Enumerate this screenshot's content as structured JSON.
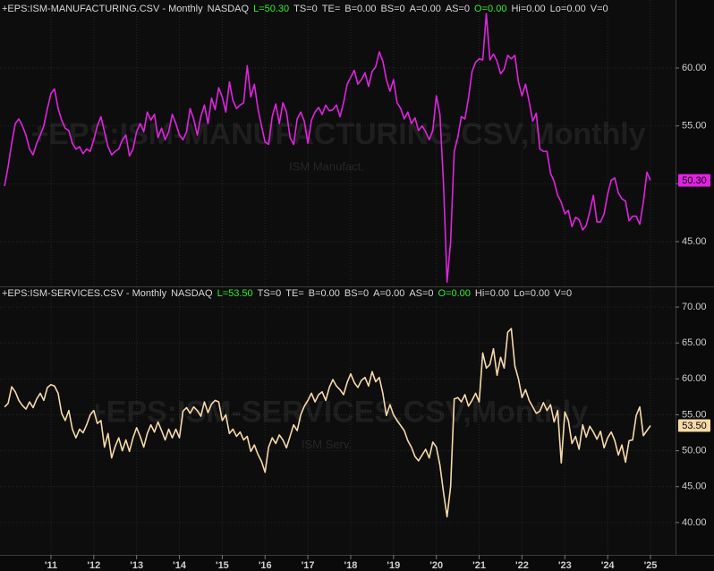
{
  "chart_data": [
    {
      "type": "line",
      "header": [
        {
          "text": "+EPS:ISM-MANUFACTURING.CSV - Monthly",
          "color": "#d8d8d8"
        },
        {
          "text": "NASDAQ",
          "color": "#d8d8d8"
        },
        {
          "text": "L=50.30",
          "color": "#33ee33"
        },
        {
          "text": "TS=0",
          "color": "#d8d8d8"
        },
        {
          "text": "TE=",
          "color": "#d8d8d8"
        },
        {
          "text": "B=0.00",
          "color": "#d8d8d8"
        },
        {
          "text": "BS=0",
          "color": "#d8d8d8"
        },
        {
          "text": "A=0.00",
          "color": "#d8d8d8"
        },
        {
          "text": "AS=0",
          "color": "#d8d8d8"
        },
        {
          "text": "O=0.00",
          "color": "#33ee33"
        },
        {
          "text": "Hi=0.00",
          "color": "#d8d8d8"
        },
        {
          "text": "Lo=0.00",
          "color": "#d8d8d8"
        },
        {
          "text": "V=0",
          "color": "#d8d8d8"
        }
      ],
      "watermark": "+EPS:ISM-MANUFACTURING.CSV,Monthly",
      "watermark_sub": "ISM Manufact.",
      "color": "#e023e0",
      "last_value_label": "50.30",
      "xlim": [
        2009.81,
        2025.585
      ],
      "xticks": [
        2011,
        2012,
        2013,
        2014,
        2015,
        2016,
        2017,
        2018,
        2019,
        2020,
        2021,
        2022,
        2023,
        2024,
        2025
      ],
      "ylim": [
        41.13,
        65.88
      ],
      "yticks": [
        {
          "value": 45,
          "label": "45.00"
        },
        {
          "value": 50,
          "label": "50.00"
        },
        {
          "value": 55,
          "label": "55.00"
        },
        {
          "value": 60,
          "label": "60.00"
        }
      ],
      "x": [
        2009.917,
        2010,
        2010.083,
        2010.167,
        2010.25,
        2010.333,
        2010.417,
        2010.5,
        2010.583,
        2010.667,
        2010.75,
        2010.833,
        2010.917,
        2011,
        2011.083,
        2011.167,
        2011.25,
        2011.333,
        2011.417,
        2011.5,
        2011.583,
        2011.667,
        2011.75,
        2011.833,
        2011.917,
        2012,
        2012.083,
        2012.167,
        2012.25,
        2012.333,
        2012.417,
        2012.5,
        2012.583,
        2012.667,
        2012.75,
        2012.833,
        2012.917,
        2013,
        2013.083,
        2013.167,
        2013.25,
        2013.333,
        2013.417,
        2013.5,
        2013.583,
        2013.667,
        2013.75,
        2013.833,
        2013.917,
        2014,
        2014.083,
        2014.167,
        2014.25,
        2014.333,
        2014.417,
        2014.5,
        2014.583,
        2014.667,
        2014.75,
        2014.833,
        2014.917,
        2015,
        2015.083,
        2015.167,
        2015.25,
        2015.333,
        2015.417,
        2015.5,
        2015.583,
        2015.667,
        2015.75,
        2015.833,
        2015.917,
        2016,
        2016.083,
        2016.167,
        2016.25,
        2016.333,
        2016.417,
        2016.5,
        2016.583,
        2016.667,
        2016.75,
        2016.833,
        2016.917,
        2017,
        2017.083,
        2017.167,
        2017.25,
        2017.333,
        2017.417,
        2017.5,
        2017.583,
        2017.667,
        2017.75,
        2017.833,
        2017.917,
        2018,
        2018.083,
        2018.167,
        2018.25,
        2018.333,
        2018.417,
        2018.5,
        2018.583,
        2018.667,
        2018.75,
        2018.833,
        2018.917,
        2019,
        2019.083,
        2019.167,
        2019.25,
        2019.333,
        2019.417,
        2019.5,
        2019.583,
        2019.667,
        2019.75,
        2019.833,
        2019.917,
        2020,
        2020.083,
        2020.167,
        2020.25,
        2020.333,
        2020.417,
        2020.5,
        2020.583,
        2020.667,
        2020.75,
        2020.833,
        2020.917,
        2021,
        2021.083,
        2021.167,
        2021.25,
        2021.333,
        2021.417,
        2021.5,
        2021.583,
        2021.667,
        2021.75,
        2021.833,
        2021.917,
        2022,
        2022.083,
        2022.167,
        2022.25,
        2022.333,
        2022.417,
        2022.5,
        2022.583,
        2022.667,
        2022.75,
        2022.833,
        2022.917,
        2023,
        2023.083,
        2023.167,
        2023.25,
        2023.333,
        2023.417,
        2023.5,
        2023.583,
        2023.667,
        2023.75,
        2023.833,
        2023.917,
        2024,
        2024.083,
        2024.167,
        2024.25,
        2024.333,
        2024.417,
        2024.5,
        2024.583,
        2024.667,
        2024.75,
        2024.833,
        2024.917,
        2025
      ],
      "values": [
        49.8,
        51.5,
        53.5,
        55.2,
        55.6,
        55.0,
        54.2,
        53.0,
        52.5,
        53.5,
        54.2,
        55.0,
        56.5,
        57.8,
        58.2,
        56.5,
        55.5,
        54.8,
        54.6,
        53.5,
        53.0,
        53.2,
        52.6,
        53.0,
        52.8,
        53.8,
        55.0,
        55.8,
        54.5,
        53.2,
        52.5,
        52.8,
        53.0,
        53.8,
        54.2,
        52.4,
        53.0,
        54.5,
        55.2,
        54.5,
        56.2,
        55.5,
        56.0,
        54.0,
        54.8,
        53.8,
        54.5,
        56.0,
        55.2,
        54.2,
        53.8,
        54.5,
        56.5,
        55.6,
        54.2,
        55.8,
        56.8,
        55.2,
        57.4,
        56.4,
        58.3,
        57.5,
        56.2,
        58.8,
        57.2,
        56.5,
        56.8,
        57.0,
        60.2,
        57.5,
        58.6,
        56.5,
        55.0,
        53.6,
        53.4,
        55.8,
        56.9,
        55.2,
        57.0,
        56.2,
        54.0,
        53.4,
        55.6,
        56.2,
        55.4,
        53.5,
        55.5,
        56.2,
        56.6,
        56.0,
        56.8,
        56.3,
        56.4,
        56.8,
        55.8,
        57.0,
        58.6,
        59.2,
        59.8,
        58.6,
        59.0,
        59.6,
        58.4,
        59.7,
        60.1,
        61.4,
        60.6,
        59.0,
        58.0,
        59.0,
        57.0,
        56.5,
        55.6,
        56.2,
        55.2,
        55.7,
        54.6,
        55.0,
        54.5,
        53.8,
        54.6,
        57.6,
        56.0,
        50.0,
        41.5,
        45.0,
        52.8,
        54.0,
        55.8,
        55.6,
        57.4,
        59.7,
        60.5,
        60.8,
        60.7,
        64.7,
        60.7,
        61.2,
        60.6,
        59.5,
        59.9,
        61.1,
        60.8,
        61.1,
        58.8,
        57.6,
        58.6,
        57.1,
        55.4,
        56.1,
        53.0,
        52.8,
        52.8,
        50.9,
        50.2,
        49.0,
        48.4,
        47.4,
        47.7,
        46.3,
        47.1,
        46.9,
        46.0,
        46.4,
        47.6,
        49.0,
        46.7,
        46.7,
        47.4,
        49.1,
        50.3,
        50.5,
        49.2,
        48.7,
        48.5,
        46.8,
        47.2,
        47.2,
        46.5,
        48.4,
        51.0,
        50.3
      ]
    },
    {
      "type": "line",
      "header": [
        {
          "text": "+EPS:ISM-SERVICES.CSV - Monthly",
          "color": "#d8d8d8"
        },
        {
          "text": "NASDAQ",
          "color": "#d8d8d8"
        },
        {
          "text": "L=53.50",
          "color": "#33ee33"
        },
        {
          "text": "TS=0",
          "color": "#d8d8d8"
        },
        {
          "text": "TE=",
          "color": "#d8d8d8"
        },
        {
          "text": "B=0.00",
          "color": "#d8d8d8"
        },
        {
          "text": "BS=0",
          "color": "#d8d8d8"
        },
        {
          "text": "A=0.00",
          "color": "#d8d8d8"
        },
        {
          "text": "AS=0",
          "color": "#d8d8d8"
        },
        {
          "text": "O=0.00",
          "color": "#33ee33"
        },
        {
          "text": "Hi=0.00",
          "color": "#d8d8d8"
        },
        {
          "text": "Lo=0.00",
          "color": "#d8d8d8"
        },
        {
          "text": "V=0",
          "color": "#d8d8d8"
        }
      ],
      "watermark": "+EPS:ISM-SERVICES.CSV,Monthly",
      "watermark_sub": "ISM Serv.",
      "color": "#f7d9a8",
      "last_value_label": "53.50",
      "xlim": [
        2009.81,
        2025.585
      ],
      "xticks": [
        {
          "value": 2011,
          "label": "'11"
        },
        {
          "value": 2012,
          "label": "'12"
        },
        {
          "value": 2013,
          "label": "'13"
        },
        {
          "value": 2014,
          "label": "'14"
        },
        {
          "value": 2015,
          "label": "'15"
        },
        {
          "value": 2016,
          "label": "'16"
        },
        {
          "value": 2017,
          "label": "'17"
        },
        {
          "value": 2018,
          "label": "'18"
        },
        {
          "value": 2019,
          "label": "'19"
        },
        {
          "value": 2020,
          "label": "'20"
        },
        {
          "value": 2021,
          "label": "'21"
        },
        {
          "value": 2022,
          "label": "'22"
        },
        {
          "value": 2023,
          "label": "'23"
        },
        {
          "value": 2024,
          "label": "'24"
        },
        {
          "value": 2025,
          "label": "'25"
        }
      ],
      "ylim": [
        35.5,
        72.75
      ],
      "yticks": [
        {
          "value": 40,
          "label": "40.00"
        },
        {
          "value": 45,
          "label": "45.00"
        },
        {
          "value": 50,
          "label": "50.00"
        },
        {
          "value": 55,
          "label": "55.00"
        },
        {
          "value": 60,
          "label": "60.00"
        },
        {
          "value": 65,
          "label": "65.00"
        },
        {
          "value": 70,
          "label": "70.00"
        }
      ],
      "x": [
        2009.917,
        2010,
        2010.083,
        2010.167,
        2010.25,
        2010.333,
        2010.417,
        2010.5,
        2010.583,
        2010.667,
        2010.75,
        2010.833,
        2010.917,
        2011,
        2011.083,
        2011.167,
        2011.25,
        2011.333,
        2011.417,
        2011.5,
        2011.583,
        2011.667,
        2011.75,
        2011.833,
        2011.917,
        2012,
        2012.083,
        2012.167,
        2012.25,
        2012.333,
        2012.417,
        2012.5,
        2012.583,
        2012.667,
        2012.75,
        2012.833,
        2012.917,
        2013,
        2013.083,
        2013.167,
        2013.25,
        2013.333,
        2013.417,
        2013.5,
        2013.583,
        2013.667,
        2013.75,
        2013.833,
        2013.917,
        2014,
        2014.083,
        2014.167,
        2014.25,
        2014.333,
        2014.417,
        2014.5,
        2014.583,
        2014.667,
        2014.75,
        2014.833,
        2014.917,
        2015,
        2015.083,
        2015.167,
        2015.25,
        2015.333,
        2015.417,
        2015.5,
        2015.583,
        2015.667,
        2015.75,
        2015.833,
        2015.917,
        2016,
        2016.083,
        2016.167,
        2016.25,
        2016.333,
        2016.417,
        2016.5,
        2016.583,
        2016.667,
        2016.75,
        2016.833,
        2016.917,
        2017,
        2017.083,
        2017.167,
        2017.25,
        2017.333,
        2017.417,
        2017.5,
        2017.583,
        2017.667,
        2017.75,
        2017.833,
        2017.917,
        2018,
        2018.083,
        2018.167,
        2018.25,
        2018.333,
        2018.417,
        2018.5,
        2018.583,
        2018.667,
        2018.75,
        2018.833,
        2018.917,
        2019,
        2019.083,
        2019.167,
        2019.25,
        2019.333,
        2019.417,
        2019.5,
        2019.583,
        2019.667,
        2019.75,
        2019.833,
        2019.917,
        2020,
        2020.083,
        2020.167,
        2020.25,
        2020.333,
        2020.417,
        2020.5,
        2020.583,
        2020.667,
        2020.75,
        2020.833,
        2020.917,
        2021,
        2021.083,
        2021.167,
        2021.25,
        2021.333,
        2021.417,
        2021.5,
        2021.583,
        2021.667,
        2021.75,
        2021.833,
        2021.917,
        2022,
        2022.083,
        2022.167,
        2022.25,
        2022.333,
        2022.417,
        2022.5,
        2022.583,
        2022.667,
        2022.75,
        2022.833,
        2022.917,
        2023,
        2023.083,
        2023.167,
        2023.25,
        2023.333,
        2023.417,
        2023.5,
        2023.583,
        2023.667,
        2023.75,
        2023.833,
        2023.917,
        2024,
        2024.083,
        2024.167,
        2024.25,
        2024.333,
        2024.417,
        2024.5,
        2024.583,
        2024.667,
        2024.75,
        2024.833,
        2024.917,
        2025
      ],
      "values": [
        56.1,
        56.6,
        58.9,
        58.2,
        57.0,
        56.3,
        55.8,
        56.8,
        56.0,
        57.2,
        58.0,
        57.0,
        58.8,
        59.2,
        59.0,
        58.0,
        55.2,
        54.2,
        55.6,
        53.0,
        51.8,
        53.0,
        52.5,
        53.6,
        55.0,
        55.6,
        53.8,
        54.2,
        50.5,
        52.4,
        49.0,
        50.6,
        51.8,
        50.0,
        51.5,
        49.9,
        51.8,
        53.2,
        52.0,
        50.5,
        52.4,
        53.6,
        52.6,
        54.0,
        52.8,
        51.5,
        53.0,
        51.8,
        53.0,
        51.8,
        55.5,
        56.0,
        55.2,
        56.1,
        55.6,
        54.8,
        56.8,
        55.3,
        56.5,
        57.0,
        56.8,
        54.2,
        55.0,
        52.4,
        53.0,
        52.0,
        52.6,
        51.5,
        52.0,
        49.9,
        50.8,
        49.5,
        48.5,
        47.0,
        50.5,
        51.8,
        51.0,
        52.2,
        51.5,
        50.4,
        52.0,
        53.6,
        52.8,
        55.0,
        56.2,
        57.0,
        58.0,
        56.8,
        57.8,
        58.2,
        57.0,
        58.8,
        59.9,
        59.0,
        58.5,
        57.8,
        59.5,
        60.7,
        59.5,
        58.8,
        59.8,
        60.2,
        59.0,
        61.0,
        59.6,
        60.2,
        58.0,
        54.9,
        56.4,
        55.0,
        54.2,
        53.5,
        52.8,
        51.4,
        50.5,
        49.2,
        48.6,
        49.4,
        50.2,
        49.0,
        51.2,
        50.5,
        48.0,
        44.2,
        40.8,
        45.0,
        57.2,
        57.4,
        56.8,
        57.8,
        56.2,
        57.0,
        58.0,
        56.8,
        63.6,
        61.5,
        62.0,
        64.2,
        60.5,
        63.0,
        61.5,
        66.5,
        67.0,
        61.8,
        60.0,
        57.4,
        58.5,
        57.0,
        56.1,
        55.2,
        55.5,
        56.7,
        55.6,
        56.4,
        54.0,
        55.6,
        48.3,
        55.4,
        54.2,
        51.0,
        52.0,
        50.2,
        53.6,
        51.9,
        53.4,
        52.6,
        51.6,
        52.7,
        50.4,
        51.8,
        52.6,
        51.4,
        49.4,
        50.8,
        48.4,
        51.4,
        51.5,
        54.9,
        56.1,
        52.1,
        52.8,
        53.5
      ]
    }
  ]
}
